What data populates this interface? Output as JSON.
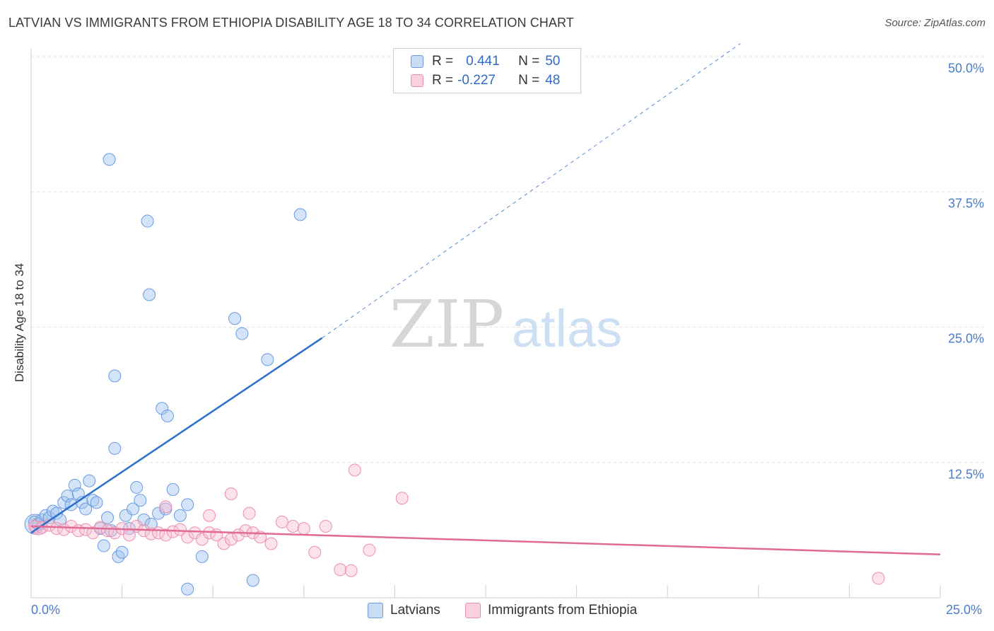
{
  "title": "LATVIAN VS IMMIGRANTS FROM ETHIOPIA DISABILITY AGE 18 TO 34 CORRELATION CHART",
  "source": "Source: ZipAtlas.com",
  "watermark": {
    "zip": "ZIP",
    "atlas": "atlas"
  },
  "colors": {
    "latvians": "#6a9be0",
    "ethiopia": "#ec8fac",
    "latvians_line": "#2a6fcc",
    "ethiopia_line": "#e06b93",
    "tick": "#4a7cc8"
  },
  "legend": {
    "latvians": {
      "r_label": "R =",
      "r_value": "0.441",
      "n_label": "N =",
      "n_value": "50"
    },
    "ethiopia": {
      "r_label": "R =",
      "r_value": "-0.227",
      "n_label": "N =",
      "n_value": "48"
    }
  },
  "chart_data": {
    "type": "scatter",
    "title": "LATVIAN VS IMMIGRANTS FROM ETHIOPIA DISABILITY AGE 18 TO 34 CORRELATION CHART",
    "xlabel": "",
    "ylabel": "Disability Age 18 to 34",
    "xlim": [
      0,
      25
    ],
    "ylim": [
      0,
      50
    ],
    "x_ticks": [
      "0.0%",
      "25.0%"
    ],
    "y_ticks": [
      {
        "value": 12.5,
        "label": "12.5%"
      },
      {
        "value": 25.0,
        "label": "25.0%"
      },
      {
        "value": 37.5,
        "label": "37.5%"
      },
      {
        "value": 50.0,
        "label": "50.0%"
      }
    ],
    "series": [
      {
        "name": "Latvians",
        "points": [
          [
            0.1,
            7.0
          ],
          [
            0.2,
            6.8
          ],
          [
            0.3,
            7.2
          ],
          [
            0.4,
            7.6
          ],
          [
            0.5,
            7.4
          ],
          [
            0.6,
            8.0
          ],
          [
            0.7,
            7.8
          ],
          [
            0.8,
            7.2
          ],
          [
            0.9,
            8.8
          ],
          [
            1.0,
            9.4
          ],
          [
            1.1,
            8.6
          ],
          [
            1.2,
            10.4
          ],
          [
            1.3,
            9.6
          ],
          [
            1.4,
            8.8
          ],
          [
            1.5,
            8.2
          ],
          [
            1.6,
            10.8
          ],
          [
            1.7,
            9.0
          ],
          [
            1.8,
            8.8
          ],
          [
            1.9,
            6.4
          ],
          [
            2.0,
            4.8
          ],
          [
            2.1,
            7.4
          ],
          [
            2.2,
            6.2
          ],
          [
            2.3,
            13.8
          ],
          [
            2.4,
            3.8
          ],
          [
            2.5,
            4.2
          ],
          [
            2.6,
            7.6
          ],
          [
            2.7,
            6.4
          ],
          [
            2.8,
            8.2
          ],
          [
            2.9,
            10.2
          ],
          [
            3.0,
            9.0
          ],
          [
            3.1,
            7.2
          ],
          [
            3.3,
            6.8
          ],
          [
            3.5,
            7.8
          ],
          [
            3.7,
            8.2
          ],
          [
            3.9,
            10.0
          ],
          [
            4.1,
            7.6
          ],
          [
            4.3,
            8.6
          ],
          [
            2.15,
            40.5
          ],
          [
            3.2,
            34.8
          ],
          [
            3.25,
            28.0
          ],
          [
            2.3,
            20.5
          ],
          [
            3.6,
            17.5
          ],
          [
            3.75,
            16.8
          ],
          [
            5.6,
            25.8
          ],
          [
            5.8,
            24.4
          ],
          [
            6.5,
            22.0
          ],
          [
            7.4,
            35.4
          ],
          [
            4.7,
            3.8
          ],
          [
            6.1,
            1.6
          ],
          [
            4.3,
            0.8
          ]
        ]
      },
      {
        "name": "Immigrants from Ethiopia",
        "points": [
          [
            0.1,
            6.6
          ],
          [
            0.3,
            6.5
          ],
          [
            0.5,
            6.7
          ],
          [
            0.7,
            6.4
          ],
          [
            0.9,
            6.3
          ],
          [
            1.1,
            6.6
          ],
          [
            1.3,
            6.2
          ],
          [
            1.5,
            6.3
          ],
          [
            1.7,
            6.0
          ],
          [
            1.9,
            6.5
          ],
          [
            2.1,
            6.2
          ],
          [
            2.3,
            6.0
          ],
          [
            2.5,
            6.4
          ],
          [
            2.7,
            5.8
          ],
          [
            2.9,
            6.6
          ],
          [
            3.1,
            6.2
          ],
          [
            3.3,
            5.9
          ],
          [
            3.5,
            6.0
          ],
          [
            3.7,
            5.8
          ],
          [
            3.9,
            6.1
          ],
          [
            4.1,
            6.3
          ],
          [
            4.3,
            5.6
          ],
          [
            4.5,
            6.0
          ],
          [
            4.7,
            5.4
          ],
          [
            4.9,
            6.0
          ],
          [
            5.1,
            5.8
          ],
          [
            5.3,
            5.0
          ],
          [
            5.5,
            5.4
          ],
          [
            5.7,
            5.8
          ],
          [
            5.9,
            6.2
          ],
          [
            6.1,
            6.0
          ],
          [
            6.3,
            5.6
          ],
          [
            6.6,
            5.0
          ],
          [
            6.9,
            7.0
          ],
          [
            7.2,
            6.6
          ],
          [
            7.5,
            6.4
          ],
          [
            7.8,
            4.2
          ],
          [
            8.1,
            6.6
          ],
          [
            8.5,
            2.6
          ],
          [
            8.8,
            2.5
          ],
          [
            8.9,
            11.8
          ],
          [
            9.3,
            4.4
          ],
          [
            10.2,
            9.2
          ],
          [
            3.7,
            8.4
          ],
          [
            4.9,
            7.6
          ],
          [
            5.5,
            9.6
          ],
          [
            6.0,
            7.8
          ],
          [
            23.3,
            1.8
          ]
        ]
      }
    ],
    "trendlines": [
      {
        "series": "Latvians",
        "x0": 0.0,
        "y0": 6.0,
        "x1": 8.0,
        "y1": 24.0,
        "dash_to_x": 19.5,
        "dash_to_y": 51.2
      },
      {
        "series": "Immigrants from Ethiopia",
        "x0": 0.0,
        "y0": 6.6,
        "x1": 25.0,
        "y1": 4.0
      }
    ]
  },
  "bottom_legend": {
    "latvians": "Latvians",
    "ethiopia": "Immigrants from Ethiopia"
  }
}
